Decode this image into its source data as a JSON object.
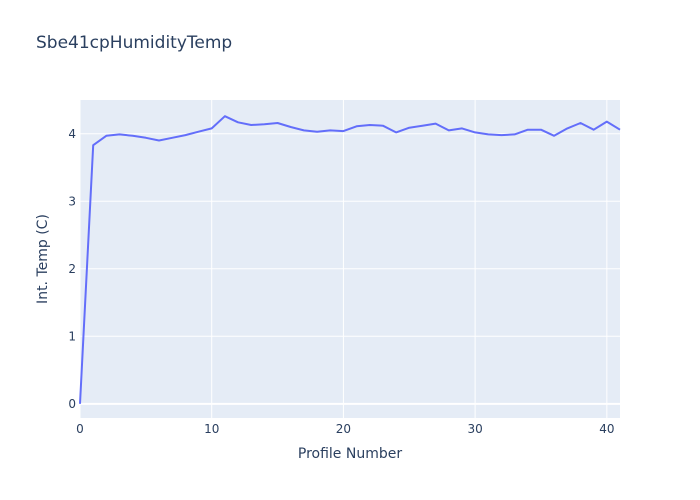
{
  "chart_data": {
    "type": "line",
    "title": "Sbe41cpHumidityTemp",
    "xlabel": "Profile Number",
    "ylabel": "Int. Temp (C)",
    "x": [
      0,
      1,
      2,
      3,
      4,
      5,
      6,
      7,
      8,
      9,
      10,
      11,
      12,
      13,
      14,
      15,
      16,
      17,
      18,
      19,
      20,
      21,
      22,
      23,
      24,
      25,
      26,
      27,
      28,
      29,
      30,
      31,
      32,
      33,
      34,
      35,
      36,
      37,
      38,
      39,
      40,
      41
    ],
    "values": [
      0.0,
      3.83,
      3.97,
      3.99,
      3.97,
      3.94,
      3.9,
      3.94,
      3.98,
      4.03,
      4.08,
      4.26,
      4.17,
      4.13,
      4.14,
      4.16,
      4.1,
      4.05,
      4.03,
      4.05,
      4.04,
      4.11,
      4.13,
      4.12,
      4.02,
      4.09,
      4.12,
      4.15,
      4.05,
      4.08,
      4.02,
      3.99,
      3.98,
      3.99,
      4.06,
      4.06,
      3.97,
      4.08,
      4.16,
      4.06,
      4.18,
      4.06
    ],
    "xticks": [
      0,
      10,
      20,
      30,
      40
    ],
    "yticks": [
      0,
      1,
      2,
      3,
      4
    ],
    "xlim": [
      0,
      41
    ],
    "ylim": [
      -0.21,
      4.5
    ],
    "grid": true,
    "legend": false,
    "colors": {
      "line": "#636EFA",
      "plot_background": "#E5ECF6",
      "paper_background": "#FFFFFF",
      "grid": "#FFFFFF",
      "text": "#2A3F5F"
    }
  }
}
